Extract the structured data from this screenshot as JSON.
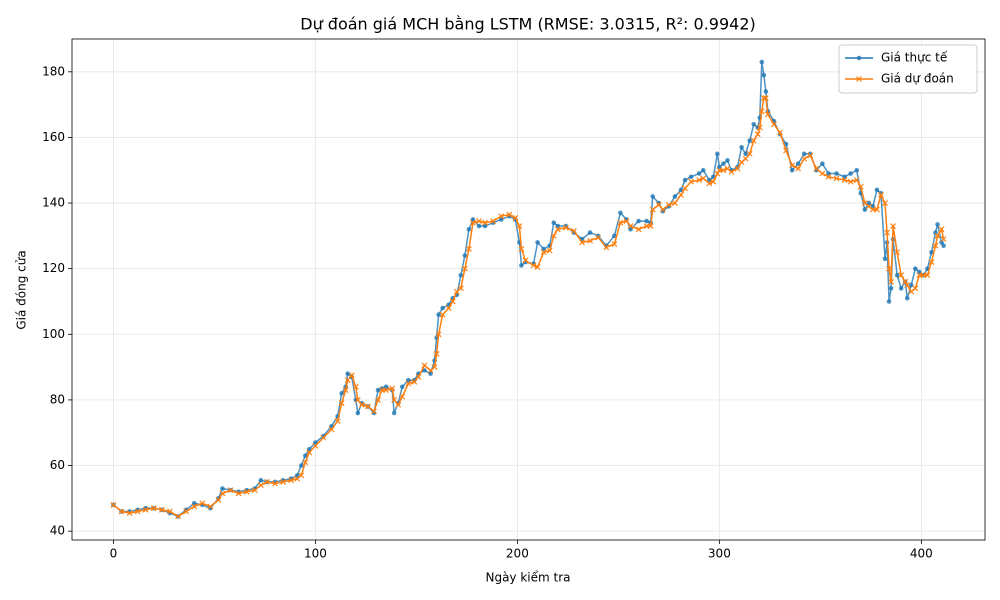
{
  "chart_data": {
    "type": "line",
    "title": "Dự đoán giá MCH bằng LSTM (RMSE: 3.0315, R²: 0.9942)",
    "x_label": "Ngày kiểm tra",
    "y_label": "Giá đóng cửa",
    "xlim": [
      -20.5,
      431.5
    ],
    "xticks": [
      0,
      100,
      200,
      300,
      400
    ],
    "ylim": [
      37.3,
      190
    ],
    "yticks": [
      40,
      60,
      80,
      100,
      120,
      140,
      160,
      180
    ],
    "grid": true,
    "legend": "upper right",
    "x": [
      0,
      4,
      8,
      12,
      16,
      20,
      24,
      28,
      32,
      36,
      40,
      44,
      48,
      52,
      54,
      58,
      62,
      66,
      70,
      73,
      76,
      80,
      84,
      88,
      91,
      93,
      95,
      97,
      100,
      104,
      108,
      111,
      113,
      115,
      116,
      118,
      120,
      121,
      123,
      126,
      129,
      131,
      133,
      135,
      138,
      139,
      141,
      143,
      146,
      149,
      151,
      154,
      157,
      159,
      160,
      161,
      163,
      166,
      168,
      170,
      172,
      174,
      176,
      178,
      181,
      184,
      188,
      192,
      196,
      199,
      201,
      202,
      204,
      208,
      210,
      213,
      216,
      218,
      220,
      224,
      228,
      232,
      236,
      240,
      244,
      248,
      251,
      254,
      256,
      260,
      264,
      266,
      267,
      270,
      272,
      275,
      278,
      281,
      283,
      286,
      290,
      292,
      295,
      297,
      299,
      300,
      302,
      304,
      306,
      309,
      311,
      313,
      315,
      317,
      319,
      320,
      321,
      322,
      323,
      324,
      327,
      330,
      333,
      336,
      339,
      342,
      345,
      348,
      351,
      354,
      358,
      362,
      365,
      368,
      370,
      372,
      374,
      376,
      378,
      380,
      382,
      383,
      384,
      385,
      386,
      388,
      390,
      392,
      393,
      395,
      397,
      399,
      401,
      403,
      405,
      407,
      408,
      410,
      411
    ],
    "series": [
      {
        "name": "Giá thực tế",
        "color": "#1f77b4",
        "marker": "circle",
        "values": [
          48,
          46,
          46,
          46.5,
          47,
          47,
          46.5,
          45.5,
          44.5,
          46.5,
          48.5,
          48,
          47,
          50,
          53,
          52.5,
          52,
          52.5,
          53,
          55.5,
          55,
          55,
          55.5,
          56,
          57,
          60,
          63,
          65,
          67,
          69,
          72,
          75,
          82,
          84,
          88,
          87,
          80,
          76,
          79,
          78,
          76,
          83,
          83.5,
          84,
          83,
          76,
          79,
          84,
          86,
          86,
          88,
          89,
          88,
          92,
          99,
          106,
          108,
          109,
          111,
          112,
          118,
          124,
          132,
          135,
          133,
          133,
          134,
          135,
          136,
          135,
          128,
          121,
          122,
          121.5,
          128,
          126,
          127,
          134,
          133,
          133,
          131,
          129,
          131,
          130,
          127,
          130,
          137,
          135,
          132,
          134.5,
          134.5,
          134,
          142,
          140,
          137.5,
          139,
          142,
          144,
          147,
          148,
          149,
          150,
          147,
          148,
          155,
          151,
          152,
          153,
          150,
          151,
          157,
          155,
          159,
          164,
          163,
          166,
          183,
          179,
          174,
          168,
          165,
          161,
          158,
          150,
          152,
          155,
          155,
          150,
          152,
          149,
          149,
          148,
          149,
          150,
          143,
          138,
          140,
          139,
          144,
          143,
          123,
          128,
          110,
          114,
          129,
          118,
          114,
          116,
          111,
          115,
          120,
          119,
          118,
          120,
          125,
          131,
          133.5,
          128,
          127
        ]
      },
      {
        "name": "Giá dự đoán",
        "color": "#ff7f0e",
        "marker": "x",
        "values": [
          48,
          46,
          45.5,
          46,
          46.5,
          47,
          46.5,
          46,
          44.5,
          46,
          47.5,
          48.5,
          47.5,
          49.5,
          51.5,
          52.5,
          51.5,
          52,
          52.5,
          54,
          55,
          54.5,
          55,
          55.5,
          56,
          57,
          61,
          64,
          66,
          68.5,
          71,
          73.5,
          79,
          83,
          86,
          87.5,
          84,
          80,
          78.5,
          78,
          76.5,
          80,
          83,
          83,
          83.5,
          80,
          78.5,
          81,
          85,
          85.5,
          87,
          90.5,
          89,
          90,
          94,
          100,
          106,
          108,
          110,
          113,
          114,
          120,
          126,
          134,
          134.5,
          134,
          134.5,
          136,
          136.5,
          135.5,
          133,
          126,
          122.5,
          121,
          120.5,
          125,
          125.5,
          130,
          132,
          132.5,
          131.5,
          128,
          128.5,
          129.5,
          126.5,
          127.5,
          134,
          134.5,
          133,
          132,
          133,
          133,
          138,
          139.5,
          138,
          139.5,
          140,
          142.5,
          144.5,
          146.5,
          147,
          147.5,
          146,
          146.5,
          149,
          150,
          150,
          150.5,
          149.5,
          150.5,
          152.5,
          153.5,
          155,
          159,
          161,
          163,
          168,
          172,
          172,
          167,
          164,
          161.5,
          156,
          151.5,
          150.5,
          153.5,
          154.5,
          150.5,
          149,
          148,
          147.5,
          147,
          146.5,
          147,
          145,
          140,
          139,
          138,
          138,
          142.5,
          140,
          131,
          120,
          116,
          133,
          125,
          118,
          116,
          115,
          113,
          114,
          118,
          118,
          118,
          122,
          127,
          130,
          132,
          129
        ]
      }
    ]
  }
}
